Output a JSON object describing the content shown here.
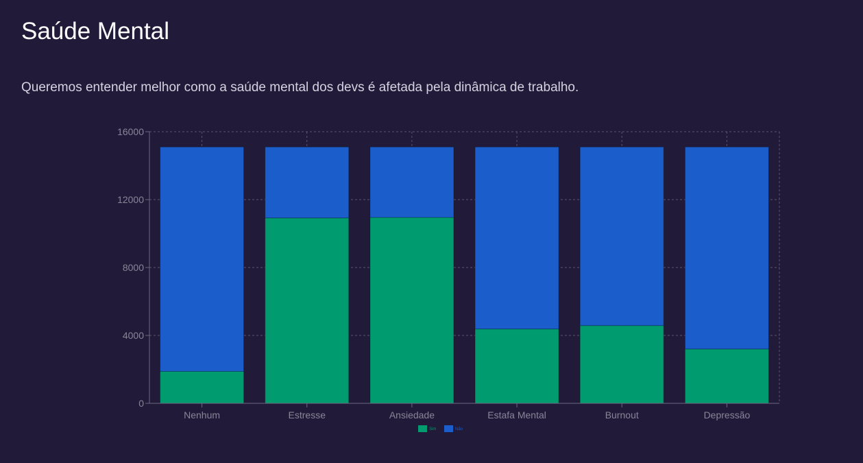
{
  "header": {
    "title": "Saúde Mental",
    "subtitle": "Queremos entender melhor como a saúde mental dos devs é afetada pela dinâmica de trabalho."
  },
  "colors": {
    "background": "#211a38",
    "sim": "#009b6e",
    "nao": "#1b5ecb",
    "grid": "#5b5670",
    "axis": "#6e6882"
  },
  "chart_data": {
    "type": "bar",
    "stacked": true,
    "categories": [
      "Nenhum",
      "Estresse",
      "Ansiedade",
      "Estafa Mental",
      "Burnout",
      "Depressão"
    ],
    "series": [
      {
        "name": "Sim",
        "color": "#009b6e",
        "values": [
          1880,
          10920,
          10950,
          4380,
          4580,
          3200
        ]
      },
      {
        "name": "Não",
        "color": "#1b5ecb",
        "values": [
          13220,
          4180,
          4150,
          10720,
          10520,
          11900
        ]
      }
    ],
    "ylim": [
      0,
      16000
    ],
    "yticks": [
      "0",
      "4000",
      "8000",
      "12000",
      "16000"
    ],
    "title": "",
    "xlabel": "",
    "ylabel": "",
    "grid": true,
    "legend": "bottom-center"
  }
}
